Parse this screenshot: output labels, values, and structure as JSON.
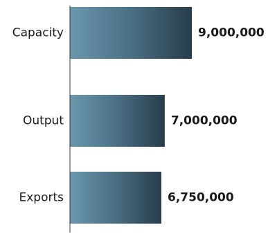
{
  "chart_data": {
    "type": "bar",
    "orientation": "horizontal",
    "categories": [
      "Capacity",
      "Output",
      "Exports"
    ],
    "values": [
      9000000,
      7000000,
      6750000
    ],
    "value_labels": [
      "9,000,000",
      "7,000,000",
      "6,750,000"
    ],
    "title": "",
    "xlabel": "",
    "ylabel": "",
    "xlim": [
      0,
      9000000
    ],
    "grid": false,
    "legend": "none",
    "colors": {
      "bar_light": "#6a97ad",
      "bar_mid": "#4a6f83",
      "bar_dark": "#283d4b",
      "axis": "#333333"
    }
  }
}
